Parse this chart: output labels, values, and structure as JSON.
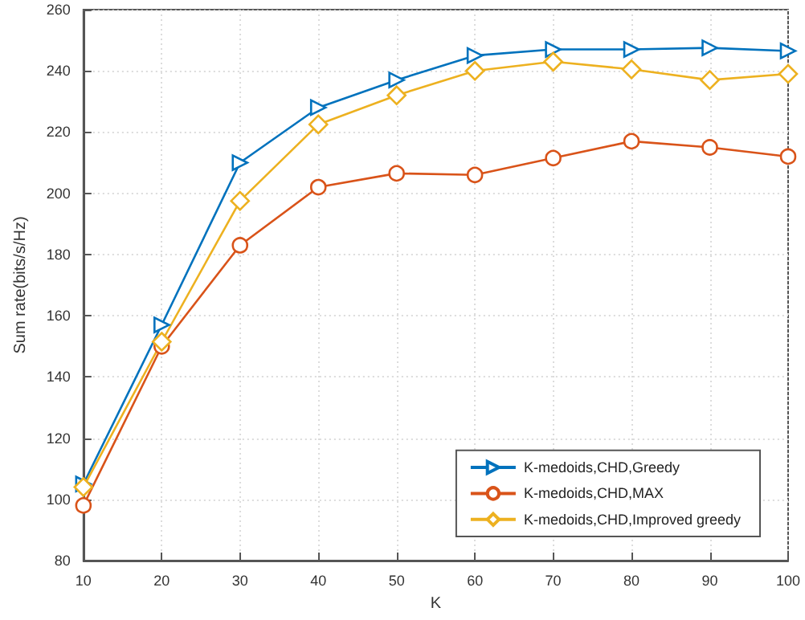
{
  "chart_data": {
    "type": "line",
    "xlabel": "K",
    "ylabel": "Sum rate(bits/s/Hz)",
    "x": [
      10,
      20,
      30,
      40,
      50,
      60,
      70,
      80,
      90,
      100
    ],
    "series": [
      {
        "name": "K-medoids,CHD,Greedy",
        "color": "#0072bd",
        "marker": "triangle",
        "values": [
          105,
          157,
          210,
          228,
          237,
          245,
          247,
          247,
          247.5,
          246.5
        ]
      },
      {
        "name": "K-medoids,CHD,MAX",
        "color": "#d95319",
        "marker": "circle",
        "values": [
          98,
          150,
          183,
          202,
          206.5,
          206,
          211.5,
          217,
          215,
          212
        ]
      },
      {
        "name": "K-medoids,CHD,Improved greedy",
        "color": "#edb120",
        "marker": "diamond",
        "values": [
          104,
          151.5,
          197.5,
          222.5,
          232,
          240,
          243,
          240.5,
          237,
          239
        ]
      }
    ],
    "xlim": [
      10,
      100
    ],
    "xticks": [
      10,
      20,
      30,
      40,
      50,
      60,
      70,
      80,
      90,
      100
    ],
    "ylim": [
      80,
      260
    ],
    "yticks": [
      80,
      100,
      120,
      140,
      160,
      180,
      200,
      220,
      240,
      260
    ],
    "grid": true,
    "legend": "bottom right",
    "line_style": "solid"
  }
}
